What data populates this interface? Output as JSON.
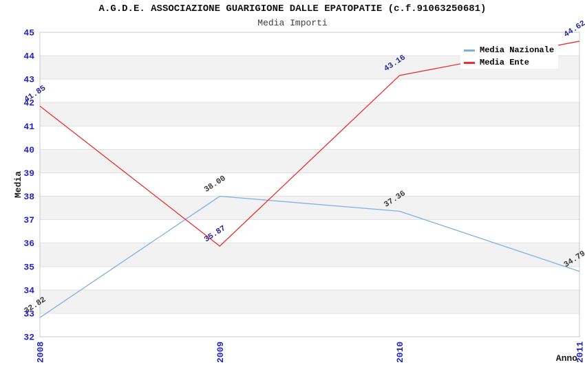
{
  "chart_data": {
    "type": "line",
    "title": "A.G.D.E. ASSOCIAZIONE GUARIGIONE DALLE EPATOPATIE (c.f.91063250681)",
    "subtitle": "Media Importi",
    "xlabel": "Anno",
    "ylabel": "Media",
    "categories": [
      "2008",
      "2009",
      "2010",
      "2011"
    ],
    "series": [
      {
        "name": "Media Nazionale",
        "color": "#82aede",
        "label_color": "#3a3a3a",
        "values": [
          32.82,
          38.0,
          37.36,
          34.79
        ],
        "labels": [
          "32.82",
          "38.00",
          "37.36",
          "34.79"
        ]
      },
      {
        "name": "Media Ente",
        "color": "#ee2e2e",
        "label_color": "#2b2b96",
        "values": [
          41.85,
          35.87,
          43.16,
          44.62
        ],
        "labels": [
          "41.85",
          "35.87",
          "43.16",
          "44.62"
        ]
      }
    ],
    "ylim": [
      32,
      45
    ],
    "yticks": [
      32,
      33,
      34,
      35,
      36,
      37,
      38,
      39,
      40,
      41,
      42,
      43,
      44,
      45
    ],
    "grid": "horizontal-bands",
    "legend_position": "top-right",
    "band_colors": [
      "#ffffff",
      "#f2f2f2"
    ],
    "gridline_color": "#e1e1e1",
    "plot_border_color": "#c8c8c8",
    "tick_color": "#2222cc",
    "axis_title_color": "#1a1a1a"
  }
}
